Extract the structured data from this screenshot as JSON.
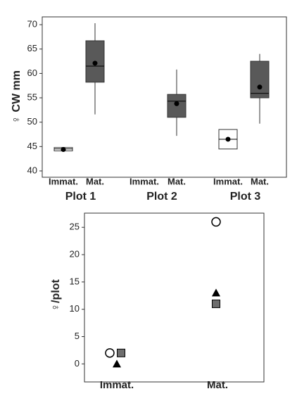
{
  "chart_data": [
    {
      "type": "box",
      "ylabel": "♀ CW mm",
      "ylim": [
        38.7,
        71.6
      ],
      "yticks": [
        40,
        45,
        50,
        55,
        60,
        65,
        70
      ],
      "groups": [
        {
          "name": "Plot 1",
          "categories": [
            "Immat.",
            "Mat."
          ],
          "boxes": [
            {
              "min": 44.1,
              "q1": 44.1,
              "median": 44.5,
              "q3": 44.8,
              "max": 44.8,
              "mean": 44.4,
              "color": "#ffffff"
            },
            {
              "min": 51.6,
              "q1": 58.2,
              "median": 61.5,
              "q3": 66.7,
              "max": 70.3,
              "mean": 62.1,
              "color": "#595959"
            }
          ]
        },
        {
          "name": "Plot 2",
          "categories": [
            "Immat.",
            "Mat."
          ],
          "boxes": [
            null,
            {
              "min": 47.2,
              "q1": 51.0,
              "median": 54.3,
              "q3": 55.7,
              "max": 60.8,
              "mean": 53.8,
              "color": "#595959"
            }
          ]
        },
        {
          "name": "Plot 3",
          "categories": [
            "Immat.",
            "Mat."
          ],
          "boxes": [
            {
              "min": 44.5,
              "q1": 44.5,
              "median": 46.5,
              "q3": 48.5,
              "max": 48.5,
              "mean": 46.5,
              "color": "#ffffff"
            },
            {
              "min": 49.7,
              "q1": 55.0,
              "median": 55.9,
              "q3": 62.5,
              "max": 64.0,
              "mean": 57.2,
              "color": "#595959"
            }
          ]
        }
      ]
    },
    {
      "type": "dot",
      "ylabel": "♀/plot",
      "ylim": [
        -3.3,
        27.6
      ],
      "yticks": [
        0,
        5,
        10,
        15,
        20,
        25
      ],
      "categories": [
        "Immat.",
        "Mat."
      ],
      "series": [
        {
          "marker": "circle",
          "color": "#ffffff",
          "values": [
            2,
            26
          ]
        },
        {
          "marker": "triangle",
          "color": "#000000",
          "values": [
            0,
            13
          ]
        },
        {
          "marker": "square",
          "color": "#6e6e6e",
          "values": [
            2,
            11
          ]
        }
      ]
    }
  ]
}
